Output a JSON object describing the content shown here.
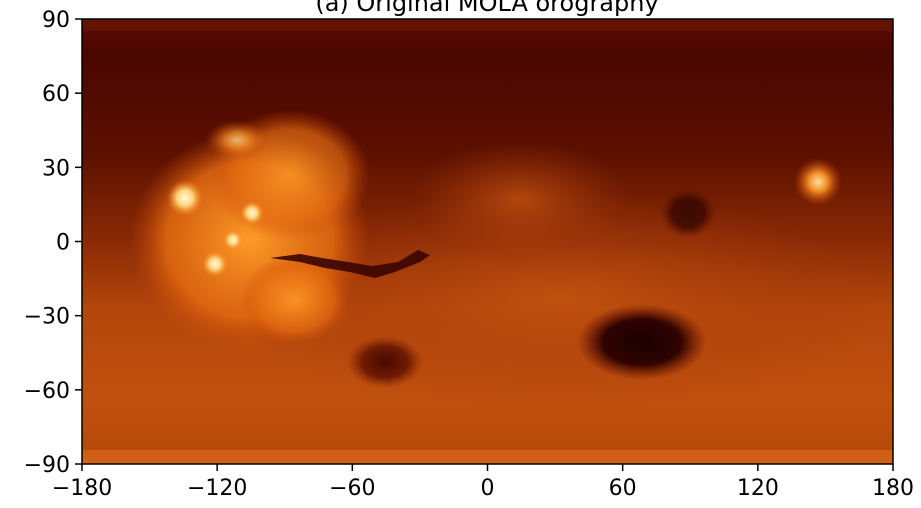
{
  "chart_data": {
    "type": "heatmap",
    "title": "(a) Original MOLA orography",
    "xlabel": "",
    "ylabel": "",
    "xlim": [
      -180,
      180
    ],
    "ylim": [
      -90,
      90
    ],
    "x_ticks": [
      "−180",
      "−120",
      "−60",
      "0",
      "60",
      "120",
      "180"
    ],
    "y_ticks": [
      "90",
      "60",
      "30",
      "0",
      "−30",
      "−60",
      "−90"
    ],
    "colormap": "afmhot",
    "grid": false,
    "features": [
      {
        "lon": -133,
        "lat": 18,
        "level": 0.95
      },
      {
        "lon": -120,
        "lat": -9,
        "level": 0.9
      },
      {
        "lon": -113,
        "lat": 1,
        "level": 0.88
      },
      {
        "lon": -104,
        "lat": 11,
        "level": 0.88
      },
      {
        "lon": -110,
        "lat": 40,
        "level": 0.8
      },
      {
        "lon": -105,
        "lat": -10,
        "level": 0.7
      },
      {
        "lon": 147,
        "lat": 25,
        "level": 0.8
      },
      {
        "lon": 67,
        "lat": -42,
        "level": 0.02
      },
      {
        "lon": -42,
        "lat": -50,
        "level": 0.1
      }
    ]
  }
}
